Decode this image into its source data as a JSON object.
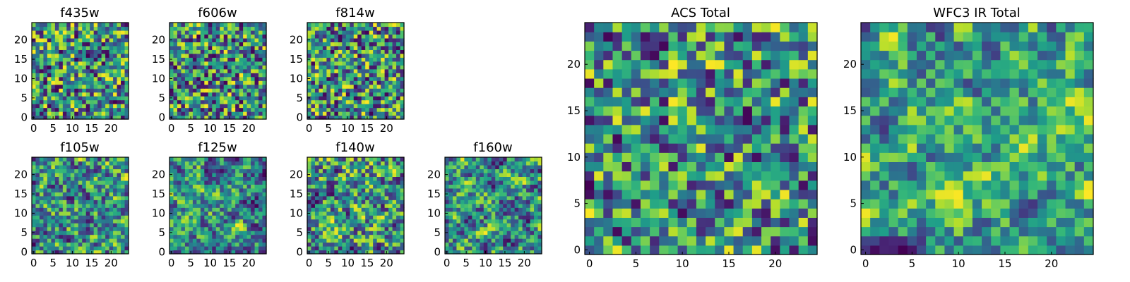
{
  "chart_data": [
    {
      "type": "heatmap",
      "title": "f435w",
      "xlim": [
        0,
        24
      ],
      "ylim": [
        0,
        24
      ],
      "xticks": [
        0,
        5,
        10,
        15,
        20
      ],
      "yticks": [
        0,
        5,
        10,
        15,
        20
      ],
      "grid": false,
      "colormap": "viridis",
      "seed": 11,
      "smooth": 0.0
    },
    {
      "type": "heatmap",
      "title": "f606w",
      "xlim": [
        0,
        24
      ],
      "ylim": [
        0,
        24
      ],
      "xticks": [
        0,
        5,
        10,
        15,
        20
      ],
      "yticks": [
        0,
        5,
        10,
        15,
        20
      ],
      "grid": false,
      "colormap": "viridis",
      "seed": 23,
      "smooth": 0.0
    },
    {
      "type": "heatmap",
      "title": "f814w",
      "xlim": [
        0,
        24
      ],
      "ylim": [
        0,
        24
      ],
      "xticks": [
        0,
        5,
        10,
        15,
        20
      ],
      "yticks": [
        0,
        5,
        10,
        15,
        20
      ],
      "grid": false,
      "colormap": "viridis",
      "seed": 37,
      "smooth": 0.0
    },
    {
      "type": "heatmap",
      "title": "f105w",
      "xlim": [
        0,
        24
      ],
      "ylim": [
        0,
        24
      ],
      "xticks": [
        0,
        5,
        10,
        15,
        20
      ],
      "yticks": [
        0,
        5,
        10,
        15,
        20
      ],
      "grid": false,
      "colormap": "viridis",
      "seed": 41,
      "smooth": 0.4
    },
    {
      "type": "heatmap",
      "title": "f125w",
      "xlim": [
        0,
        24
      ],
      "ylim": [
        0,
        24
      ],
      "xticks": [
        0,
        5,
        10,
        15,
        20
      ],
      "yticks": [
        0,
        5,
        10,
        15,
        20
      ],
      "grid": false,
      "colormap": "viridis",
      "seed": 53,
      "smooth": 0.5
    },
    {
      "type": "heatmap",
      "title": "f140w",
      "xlim": [
        0,
        24
      ],
      "ylim": [
        0,
        24
      ],
      "xticks": [
        0,
        5,
        10,
        15,
        20
      ],
      "yticks": [
        0,
        5,
        10,
        15,
        20
      ],
      "grid": false,
      "colormap": "viridis",
      "seed": 67,
      "smooth": 0.4
    },
    {
      "type": "heatmap",
      "title": "f160w",
      "xlim": [
        0,
        24
      ],
      "ylim": [
        0,
        24
      ],
      "xticks": [
        0,
        5,
        10,
        15,
        20
      ],
      "yticks": [
        0,
        5,
        10,
        15,
        20
      ],
      "grid": false,
      "colormap": "viridis",
      "seed": 71,
      "smooth": 0.5
    },
    {
      "type": "heatmap",
      "title": "ACS Total",
      "xlim": [
        0,
        24
      ],
      "ylim": [
        0,
        24
      ],
      "xticks": [
        0,
        5,
        10,
        15,
        20
      ],
      "yticks": [
        0,
        5,
        10,
        15,
        20
      ],
      "grid": false,
      "colormap": "viridis",
      "seed": 89,
      "smooth": 0.2
    },
    {
      "type": "heatmap",
      "title": "WFC3 IR Total",
      "xlim": [
        0,
        24
      ],
      "ylim": [
        0,
        24
      ],
      "xticks": [
        0,
        5,
        10,
        15,
        20
      ],
      "yticks": [
        0,
        5,
        10,
        15,
        20
      ],
      "grid": false,
      "colormap": "viridis",
      "seed": 97,
      "smooth": 0.6
    }
  ]
}
